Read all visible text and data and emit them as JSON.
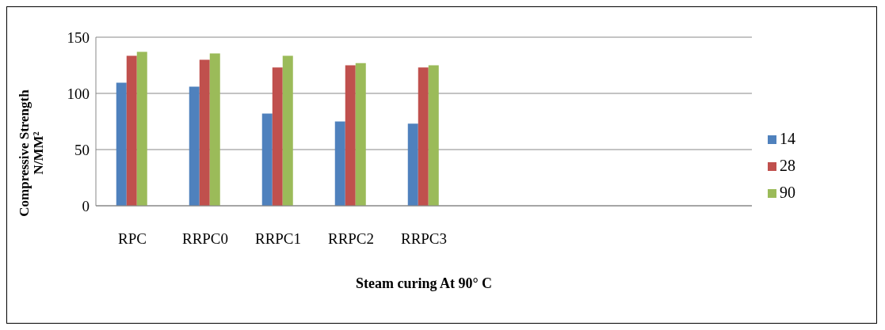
{
  "chart_data": {
    "type": "bar",
    "xlabel": "Steam curing At 90° C",
    "ylabel": "Compressive Strength\nN/MM²",
    "categories": [
      "RPC",
      "RRPC0",
      "RRPC1",
      "RRPC2",
      "RRPC3",
      null,
      null,
      null,
      null
    ],
    "series": [
      {
        "name": "14",
        "color": "#4f81bd",
        "values": [
          109.5,
          106,
          82,
          75,
          73,
          null,
          null,
          null,
          null
        ]
      },
      {
        "name": "28",
        "color": "#c0504d",
        "values": [
          133.5,
          130,
          123,
          125,
          123,
          null,
          null,
          null,
          null
        ]
      },
      {
        "name": "90",
        "color": "#9bbb59",
        "values": [
          137,
          135.5,
          133.5,
          127,
          125,
          null,
          null,
          null,
          null
        ]
      }
    ],
    "ylim": [
      0,
      150
    ],
    "yticks": [
      0,
      50,
      100,
      150
    ],
    "grid": "y",
    "legend": "right"
  }
}
